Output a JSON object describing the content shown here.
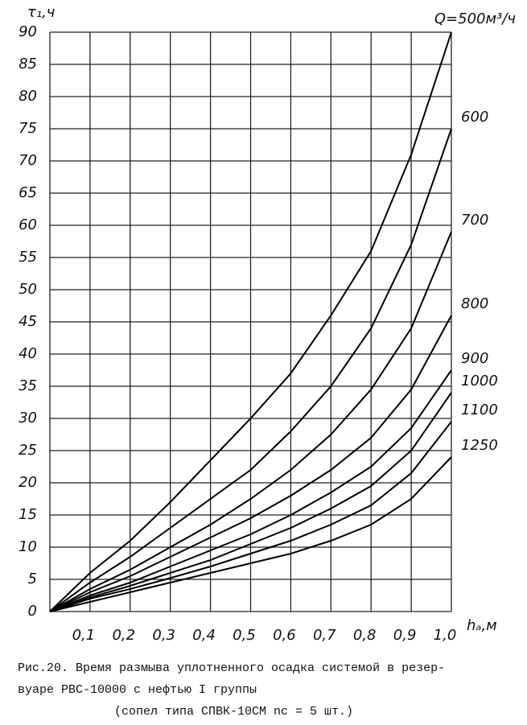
{
  "chart_data": {
    "type": "line",
    "y_label": "τ₁,ч",
    "x_label": "hₐ,м",
    "x": [
      0,
      0.1,
      0.2,
      0.3,
      0.4,
      0.5,
      0.6,
      0.7,
      0.8,
      0.9,
      1.0
    ],
    "series": [
      {
        "name": "Q=500м³/ч",
        "color": "#000000",
        "values": [
          0,
          6,
          11,
          17,
          23.5,
          30,
          37,
          46,
          56,
          71,
          90
        ]
      },
      {
        "name": "600",
        "color": "#000000",
        "values": [
          0,
          4.5,
          8.5,
          13,
          17.5,
          22,
          28,
          35,
          44,
          57,
          75
        ]
      },
      {
        "name": "700",
        "color": "#000000",
        "values": [
          0,
          3.5,
          6.5,
          10,
          13.5,
          17.5,
          22,
          27.5,
          34.5,
          44,
          59
        ]
      },
      {
        "name": "800",
        "color": "#000000",
        "values": [
          0,
          3,
          5.5,
          8.5,
          11.5,
          14.5,
          18,
          22,
          27,
          34.5,
          46
        ]
      },
      {
        "name": "900",
        "color": "#000000",
        "values": [
          0,
          2.5,
          4.5,
          7,
          9.5,
          12,
          15,
          18.5,
          22.5,
          28.5,
          37.5
        ]
      },
      {
        "name": "1000",
        "color": "#000000",
        "values": [
          0,
          2.2,
          4,
          6,
          8,
          10.5,
          13,
          16,
          19.5,
          25,
          34
        ]
      },
      {
        "name": "1100",
        "color": "#000000",
        "values": [
          0,
          2,
          3.5,
          5.2,
          7,
          9,
          11,
          13.5,
          16.5,
          21.5,
          29.5
        ]
      },
      {
        "name": "1250",
        "color": "#000000",
        "values": [
          0,
          1.5,
          3,
          4.5,
          6,
          7.5,
          9,
          11,
          13.5,
          17.5,
          24
        ]
      }
    ],
    "xlim": [
      0,
      1.0
    ],
    "ylim": [
      0,
      90
    ],
    "xticks": [
      {
        "value": 0.1,
        "label": "0,1"
      },
      {
        "value": 0.2,
        "label": "0,2"
      },
      {
        "value": 0.3,
        "label": "0,3"
      },
      {
        "value": 0.4,
        "label": "0,4"
      },
      {
        "value": 0.5,
        "label": "0,5"
      },
      {
        "value": 0.6,
        "label": "0,6"
      },
      {
        "value": 0.7,
        "label": "0,7"
      },
      {
        "value": 0.8,
        "label": "0,8"
      },
      {
        "value": 0.9,
        "label": "0,9"
      },
      {
        "value": 1.0,
        "label": "1,0"
      }
    ],
    "yticks": [
      0,
      5,
      10,
      15,
      20,
      25,
      30,
      35,
      40,
      45,
      50,
      55,
      60,
      65,
      70,
      75,
      80,
      85,
      90
    ],
    "grid": true,
    "caption": [
      "Рис.20. Время размыва уплотненного осадка системой в резер-",
      "вуаре РВС-10000 с нефтью I группы",
      "(сопел типа СПВК-10СМ  nс = 5 шт.)"
    ]
  }
}
